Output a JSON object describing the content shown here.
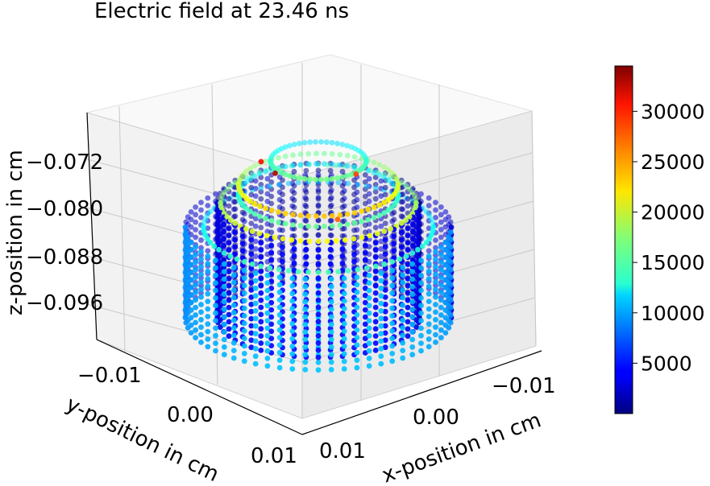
{
  "chart_data": {
    "type": "scatter",
    "projection": "3d",
    "title": "Electric field at 23.46 ns",
    "xlabel": "x-position in cm",
    "ylabel": "y-position in cm",
    "zlabel": "z-position in cm",
    "x_ticks": [
      "−0.01",
      "0.00",
      "0.01"
    ],
    "y_ticks": [
      "−0.01",
      "0.00",
      "0.01"
    ],
    "z_ticks": [
      "−0.072",
      "−0.080",
      "−0.088",
      "−0.096"
    ],
    "colorbar": {
      "colormap": "jet",
      "range": [
        0,
        34500
      ],
      "ticks": [
        "30000",
        "25000",
        "20000",
        "15000",
        "10000",
        "5000"
      ]
    },
    "grid": true,
    "series": [
      {
        "shape": "cylinder-shell",
        "radius": 0.0125,
        "z_range": [
          -0.0985,
          -0.0835
        ],
        "value_low": 7000,
        "value_high": 11000
      },
      {
        "shape": "cylinder-shell",
        "radius": 0.0095,
        "z_range": [
          -0.0985,
          -0.0795
        ],
        "value_low": 1500,
        "value_high": 4500
      },
      {
        "shape": "ring",
        "radius": 0.0108,
        "z": -0.0835,
        "value": 15500
      },
      {
        "shape": "ring",
        "radius": 0.0092,
        "z": -0.0795,
        "value": 21500
      },
      {
        "shape": "ring",
        "radius": 0.0075,
        "z": -0.0765,
        "value": 23500
      },
      {
        "shape": "ring",
        "radius": 0.0075,
        "z": -0.0782,
        "value": 16500
      },
      {
        "shape": "ring",
        "radius": 0.0045,
        "z": -0.0725,
        "value": 17000
      },
      {
        "shape": "hotspots",
        "values": [
          33000,
          30000,
          28000,
          27000
        ]
      }
    ]
  }
}
